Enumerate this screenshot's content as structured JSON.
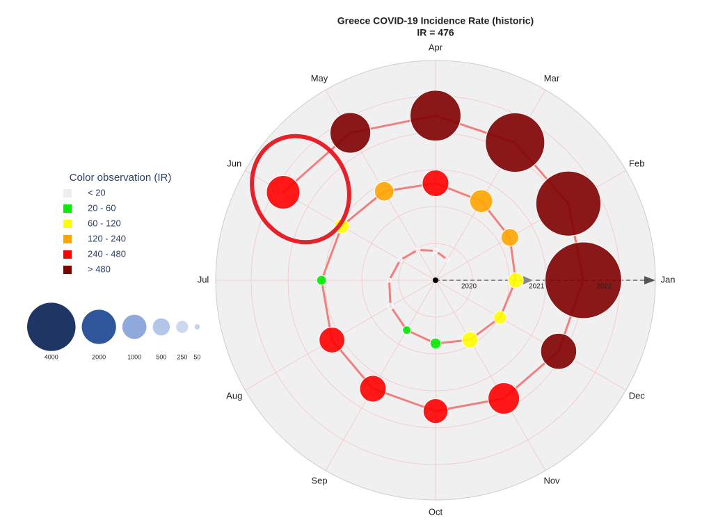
{
  "chart_data": {
    "type": "polar-bubble",
    "title": "Greece COVID-19 Incidence Rate (historic)",
    "subtitle": "IR = 476",
    "angular_categories": [
      "Jan",
      "Feb",
      "Mar",
      "Apr",
      "May",
      "Jun",
      "Jul",
      "Aug",
      "Sep",
      "Oct",
      "Nov",
      "Dec"
    ],
    "years": [
      "2020",
      "2021",
      "2022"
    ],
    "x": [
      "2020-03",
      "2020-04",
      "2020-05",
      "2020-06",
      "2020-07",
      "2020-08",
      "2020-09",
      "2020-10",
      "2020-11",
      "2020-12",
      "2021-01",
      "2021-02",
      "2021-03",
      "2021-04",
      "2021-05",
      "2021-06",
      "2021-07",
      "2021-08",
      "2021-09",
      "2021-10",
      "2021-11",
      "2021-12",
      "2022-01",
      "2022-02",
      "2022-03",
      "2022-04",
      "2022-05",
      "2022-06"
    ],
    "values": [
      3,
      10,
      2,
      2,
      5,
      15,
      30,
      50,
      110,
      70,
      100,
      130,
      220,
      300,
      160,
      90,
      40,
      280,
      300,
      260,
      420,
      550,
      2500,
      1800,
      1500,
      1100,
      700,
      476
    ],
    "color_legend": {
      "title": "Color observation (IR)",
      "labels": [
        "< 20",
        "20 - 60",
        "60 - 120",
        "120 - 240",
        "240 - 480",
        "> 480"
      ],
      "colors": [
        "#eeeeee",
        "#00ee00",
        "#ffff00",
        "#ffa500",
        "#ff0000",
        "#800000"
      ],
      "thresholds": [
        20,
        60,
        120,
        240,
        480
      ]
    },
    "size_legend": {
      "values": [
        4000,
        2000,
        1000,
        500,
        250,
        50
      ],
      "colors": [
        "#1f3664",
        "#2f559a",
        "#8fa9dc",
        "#b3c6e8",
        "#cbd8f0",
        "#c5d3ee"
      ]
    }
  }
}
